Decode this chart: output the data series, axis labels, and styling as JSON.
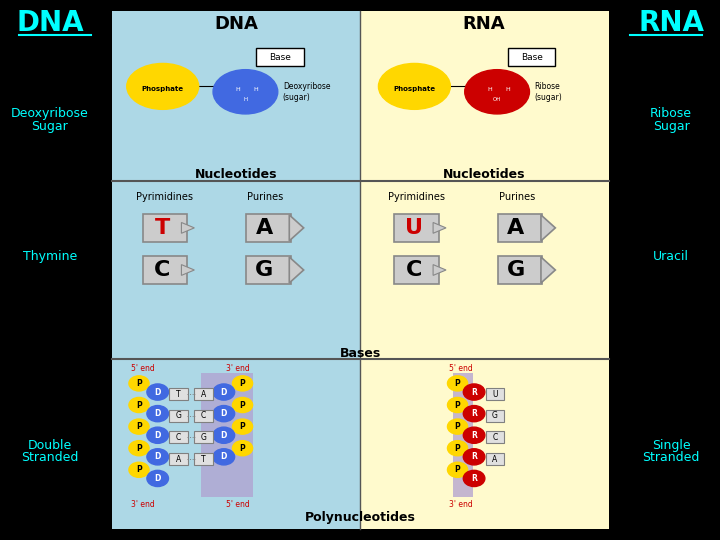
{
  "bg_color": "#000000",
  "dna_panel_color": "#add8e6",
  "rna_panel_color": "#fffacd",
  "left_label_color": "#00ffff",
  "right_label_color": "#00ffff",
  "title_color": "#000000",
  "section_line_color": "#555555",
  "dna_title": "DNA",
  "rna_title": "RNA",
  "left_dna": "DNA",
  "right_rna": "RNA",
  "left_sub1": "Deoxyribose",
  "left_sub2": "Sugar",
  "right_sub1": "Ribose",
  "right_sub2": "Sugar",
  "thymine_label": "Thymine",
  "uracil_label": "Uracil",
  "double_label1": "Double",
  "double_label2": "Stranded",
  "single_label1": "Single",
  "single_label2": "Stranded",
  "nucleotides_label": "Nucleotides",
  "bases_label": "Bases",
  "poly_label": "Polynucleotides",
  "pyrimidines": "Pyrimidines",
  "purines": "Purines",
  "phosphate_label": "Phosphate",
  "deoxyribose_label": "Deoxyribose\n(sugar)",
  "ribose_label": "Ribose\n(sugar)",
  "base_label": "Base",
  "dna_sugar_color": "#4169e1",
  "rna_sugar_color": "#cc0000",
  "phosphate_color": "#ffd700",
  "t_color": "#cc0000",
  "u_color": "#cc0000",
  "shape_gray": "#c8c8c8",
  "shape_outline": "#888888",
  "five_end": "5' end",
  "three_end": "3' end",
  "d_circle_color": "#4169e1",
  "p_circle_color": "#ffd700",
  "r_circle_color": "#cc0000",
  "strand_bg_color": "#b0a0d0"
}
